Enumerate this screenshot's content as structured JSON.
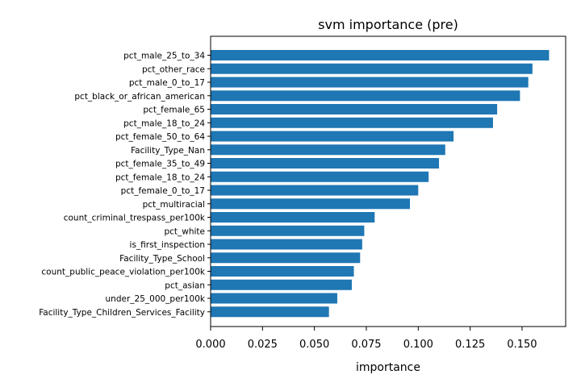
{
  "chart_data": {
    "type": "bar",
    "orientation": "horizontal",
    "title": "svm importance (pre)",
    "xlabel": "importance",
    "ylabel": "",
    "xlim": [
      0,
      0.171
    ],
    "xticks": [
      0.0,
      0.025,
      0.05,
      0.075,
      0.1,
      0.125,
      0.15
    ],
    "xtick_labels": [
      "0.000",
      "0.025",
      "0.050",
      "0.075",
      "0.100",
      "0.125",
      "0.150"
    ],
    "grid": false,
    "bar_color": "#1f77b4",
    "categories": [
      "pct_male_25_to_34",
      "pct_other_race",
      "pct_male_0_to_17",
      "pct_black_or_african_american",
      "pct_female_65",
      "pct_male_18_to_24",
      "pct_female_50_to_64",
      "Facility_Type_Nan",
      "pct_female_35_to_49",
      "pct_female_18_to_24",
      "pct_female_0_to_17",
      "pct_multiracial",
      "count_criminal_trespass_per100k",
      "pct_white",
      "is_first_inspection",
      "Facility_Type_School",
      "count_public_peace_violation_per100k",
      "pct_asian",
      "under_25_000_per100k",
      "Facility_Type_Children_Services_Facility"
    ],
    "values": [
      0.163,
      0.155,
      0.153,
      0.149,
      0.138,
      0.136,
      0.117,
      0.113,
      0.11,
      0.105,
      0.1,
      0.096,
      0.079,
      0.074,
      0.073,
      0.072,
      0.069,
      0.068,
      0.061,
      0.057
    ]
  }
}
